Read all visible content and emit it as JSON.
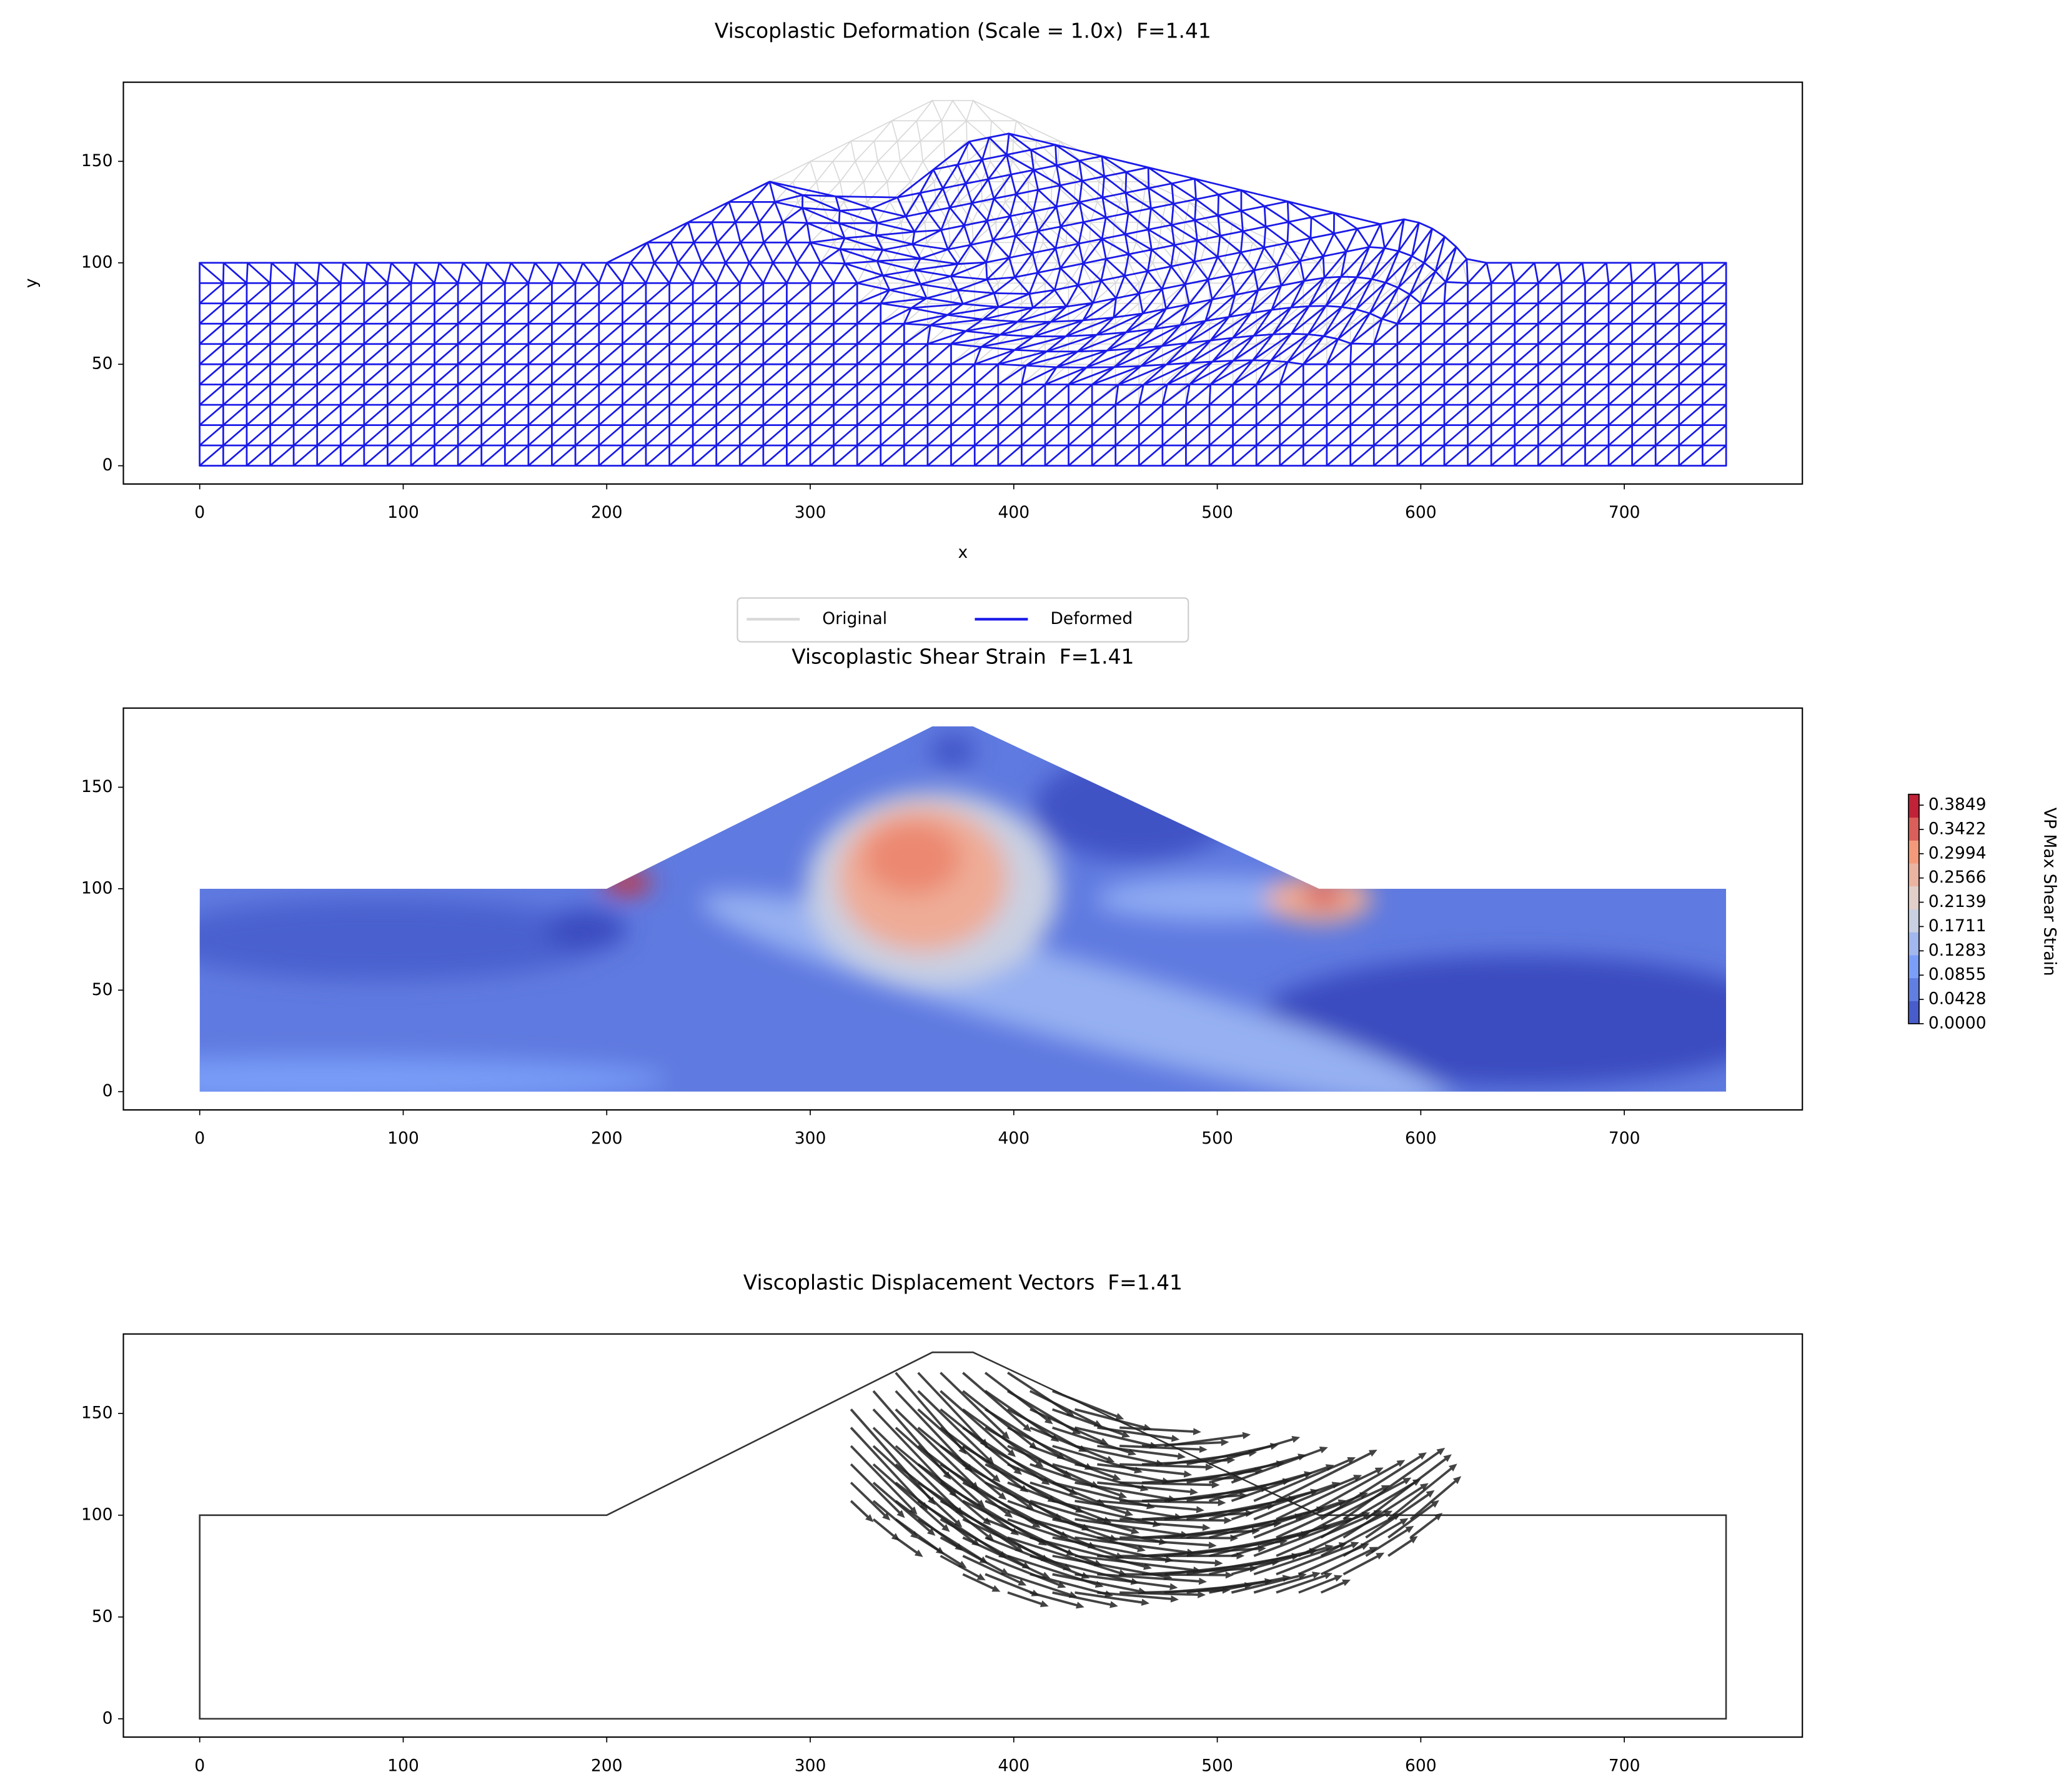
{
  "chart_data": [
    {
      "type": "mesh",
      "title": "Viscoplastic Deformation (Scale = 1.0x)  F=1.41",
      "xlabel": "x",
      "ylabel": "y",
      "xlim": [
        -37.5,
        787.5
      ],
      "ylim": [
        -9,
        189
      ],
      "xticks": [
        0,
        100,
        200,
        300,
        400,
        500,
        600,
        700
      ],
      "yticks": [
        0,
        50,
        100,
        150
      ],
      "series": [
        {
          "name": "Original",
          "color": "#d9d9d9"
        },
        {
          "name": "Deformed",
          "color": "#1a1ae8"
        }
      ],
      "legend": "lower center"
    },
    {
      "type": "contour",
      "title": "Viscoplastic Shear Strain  F=1.41",
      "xlim": [
        -37.5,
        787.5
      ],
      "ylim": [
        -9,
        189
      ],
      "xticks": [
        0,
        100,
        200,
        300,
        400,
        500,
        600,
        700
      ],
      "yticks": [
        0,
        50,
        100,
        150
      ],
      "colorbar": {
        "label": "VP Max Shear Strain",
        "cmap": "coolwarm",
        "lim": [
          0,
          0.404
        ],
        "ticks": [
          {
            "value": 0,
            "label": "0.0000"
          },
          0.0428,
          0.0855,
          0.1283,
          0.1711,
          0.2139,
          0.2566,
          0.2994,
          0.3422,
          0.3849
        ]
      }
    },
    {
      "type": "quiver",
      "title": "Viscoplastic Displacement Vectors  F=1.41",
      "xlim": [
        -37.5,
        787.5
      ],
      "ylim": [
        -9,
        189
      ],
      "xticks": [
        0,
        100,
        200,
        300,
        400,
        500,
        600,
        700
      ],
      "yticks": [
        0,
        50,
        100,
        150
      ]
    }
  ]
}
